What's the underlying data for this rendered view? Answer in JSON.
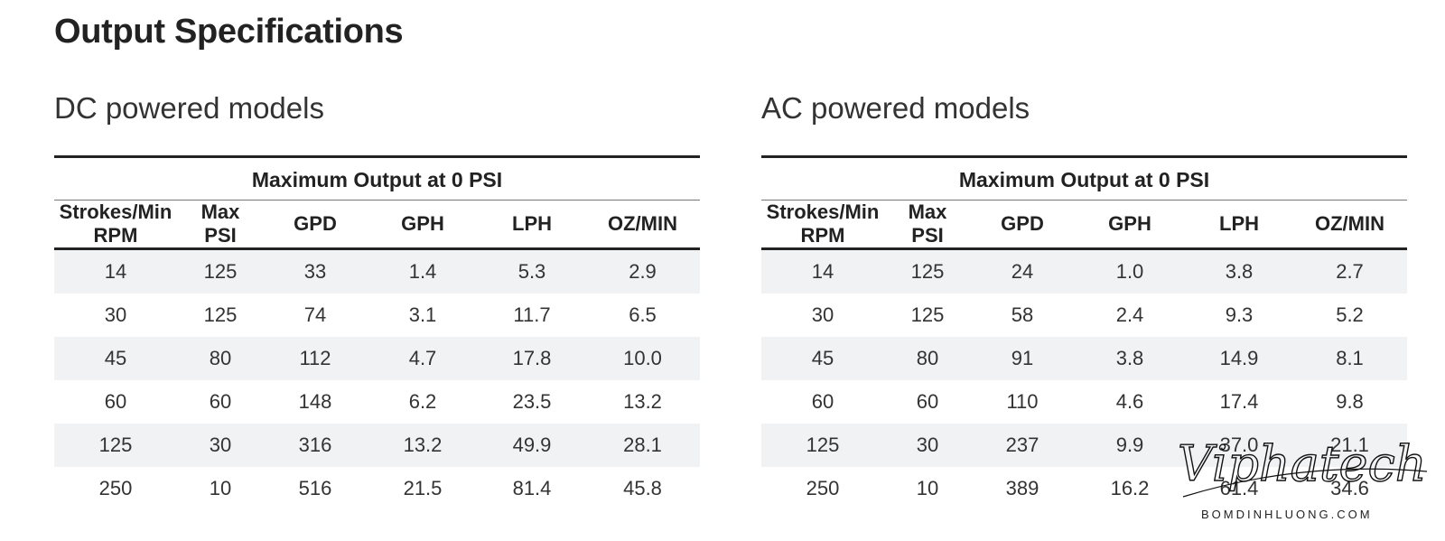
{
  "title": "Output Specifications",
  "dc": {
    "heading": "DC powered models",
    "caption": "Maximum Output at 0 PSI",
    "columns": [
      "Strokes/Min\nRPM",
      "Max\nPSI",
      "GPD",
      "GPH",
      "LPH",
      "OZ/MIN"
    ],
    "rows": [
      [
        "14",
        "125",
        "33",
        "1.4",
        "5.3",
        "2.9"
      ],
      [
        "30",
        "125",
        "74",
        "3.1",
        "11.7",
        "6.5"
      ],
      [
        "45",
        "80",
        "112",
        "4.7",
        "17.8",
        "10.0"
      ],
      [
        "60",
        "60",
        "148",
        "6.2",
        "23.5",
        "13.2"
      ],
      [
        "125",
        "30",
        "316",
        "13.2",
        "49.9",
        "28.1"
      ],
      [
        "250",
        "10",
        "516",
        "21.5",
        "81.4",
        "45.8"
      ]
    ]
  },
  "ac": {
    "heading": "AC powered models",
    "caption": "Maximum Output at 0 PSI",
    "columns": [
      "Strokes/Min\nRPM",
      "Max\nPSI",
      "GPD",
      "GPH",
      "LPH",
      "OZ/MIN"
    ],
    "rows": [
      [
        "14",
        "125",
        "24",
        "1.0",
        "3.8",
        "2.7"
      ],
      [
        "30",
        "125",
        "58",
        "2.4",
        "9.3",
        "5.2"
      ],
      [
        "45",
        "80",
        "91",
        "3.8",
        "14.9",
        "8.1"
      ],
      [
        "60",
        "60",
        "110",
        "4.6",
        "17.4",
        "9.8"
      ],
      [
        "125",
        "30",
        "237",
        "9.9",
        "37.0",
        "21.1"
      ],
      [
        "250",
        "10",
        "389",
        "16.2",
        "61.4",
        "34.6"
      ]
    ]
  },
  "watermark": {
    "logo_text": "Viphatech",
    "sub_text": "BOMDINHLUONG.COM"
  }
}
